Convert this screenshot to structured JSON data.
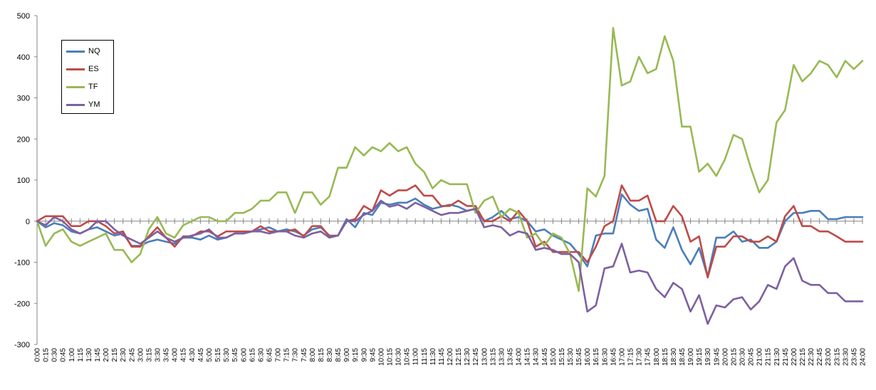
{
  "chart_data": {
    "type": "line",
    "title": "",
    "xlabel": "",
    "ylabel": "",
    "ylim": [
      -300,
      500
    ],
    "yticks": [
      -300,
      -200,
      -100,
      0,
      100,
      200,
      300,
      400,
      500
    ],
    "grid": false,
    "legend_position": "top-left",
    "x": [
      "0:00",
      "0:15",
      "0:30",
      "0:45",
      "1:00",
      "1:15",
      "1:30",
      "1:45",
      "2:00",
      "2:15",
      "2:30",
      "2:45",
      "3:00",
      "3:15",
      "3:30",
      "3:45",
      "4:00",
      "4:15",
      "4:30",
      "4:45",
      "5:00",
      "5:15",
      "5:30",
      "5:45",
      "6:00",
      "6:15",
      "6:30",
      "6:45",
      "7:00",
      "7:15",
      "7:30",
      "7:45",
      "8:00",
      "8:15",
      "8:30",
      "8:45",
      "9:00",
      "9:15",
      "9:30",
      "9:45",
      "10:00",
      "10:15",
      "10:30",
      "10:45",
      "11:00",
      "11:15",
      "11:30",
      "11:45",
      "12:00",
      "12:15",
      "12:30",
      "12:45",
      "13:00",
      "13:15",
      "13:30",
      "13:45",
      "14:00",
      "14:15",
      "14:30",
      "14:45",
      "15:00",
      "15:15",
      "15:30",
      "15:45",
      "16:00",
      "16:15",
      "16:30",
      "16:45",
      "17:00",
      "17:15",
      "17:30",
      "17:45",
      "18:00",
      "18:15",
      "18:30",
      "18:45",
      "19:00",
      "19:15",
      "19:30",
      "19:45",
      "20:00",
      "20:15",
      "20:30",
      "20:45",
      "21:00",
      "21:15",
      "21:30",
      "21:45",
      "22:00",
      "22:15",
      "22:30",
      "22:45",
      "23:00",
      "23:15",
      "23:30",
      "23:45",
      "24:00"
    ],
    "series": [
      {
        "name": "NQ",
        "color": "#4A7EBB",
        "values": [
          0,
          -15,
          -5,
          -10,
          -25,
          -30,
          -20,
          -15,
          -25,
          -35,
          -30,
          -60,
          -60,
          -50,
          -45,
          -50,
          -55,
          -40,
          -40,
          -45,
          -35,
          -45,
          -40,
          -30,
          -30,
          -25,
          -20,
          -15,
          -25,
          -20,
          -25,
          -35,
          -20,
          -15,
          -35,
          -35,
          5,
          -15,
          20,
          15,
          45,
          40,
          45,
          45,
          55,
          40,
          30,
          35,
          40,
          35,
          25,
          30,
          0,
          10,
          25,
          5,
          10,
          0,
          -25,
          -20,
          -35,
          -45,
          -55,
          -80,
          -110,
          -35,
          -30,
          -30,
          65,
          40,
          25,
          30,
          -45,
          -65,
          -15,
          -70,
          -105,
          -65,
          -135,
          -40,
          -40,
          -25,
          -50,
          -45,
          -65,
          -65,
          -50,
          0,
          20,
          20,
          25,
          25,
          5,
          5,
          10,
          10,
          10
        ]
      },
      {
        "name": "ES",
        "color": "#BE4B48",
        "values": [
          0,
          12,
          12,
          12,
          -12,
          -12,
          0,
          0,
          -12,
          -30,
          -25,
          -62,
          -62,
          -37,
          -15,
          -40,
          -62,
          -37,
          -37,
          -25,
          -25,
          -37,
          -25,
          -25,
          -25,
          -25,
          -12,
          -25,
          -25,
          -25,
          -20,
          -37,
          -12,
          -12,
          -37,
          -35,
          0,
          5,
          37,
          25,
          75,
          62,
          75,
          75,
          87,
          62,
          62,
          37,
          37,
          50,
          37,
          37,
          0,
          0,
          12,
          0,
          25,
          0,
          -62,
          -50,
          -75,
          -75,
          -75,
          -75,
          -100,
          -62,
          -12,
          0,
          87,
          50,
          50,
          62,
          0,
          0,
          37,
          12,
          -50,
          -37,
          -137,
          -62,
          -62,
          -37,
          -37,
          -50,
          -50,
          -37,
          -50,
          12,
          37,
          -12,
          -12,
          -25,
          -25,
          -37,
          -50,
          -50,
          -50
        ]
      },
      {
        "name": "TF",
        "color": "#98B954",
        "values": [
          0,
          -60,
          -30,
          -20,
          -50,
          -60,
          -50,
          -40,
          -30,
          -70,
          -70,
          -100,
          -80,
          -20,
          10,
          -30,
          -40,
          -10,
          0,
          10,
          10,
          0,
          0,
          20,
          20,
          30,
          50,
          50,
          70,
          70,
          20,
          70,
          70,
          40,
          60,
          130,
          130,
          180,
          160,
          180,
          170,
          190,
          170,
          180,
          140,
          120,
          80,
          100,
          90,
          90,
          90,
          20,
          50,
          60,
          10,
          30,
          20,
          -40,
          -30,
          -60,
          -30,
          -40,
          -80,
          -170,
          80,
          60,
          110,
          470,
          330,
          340,
          400,
          360,
          370,
          450,
          390,
          230,
          230,
          120,
          140,
          110,
          150,
          210,
          200,
          130,
          70,
          100,
          240,
          270,
          380,
          340,
          360,
          390,
          380,
          350,
          390,
          370,
          390
        ]
      },
      {
        "name": "YM",
        "color": "#7D60A0",
        "values": [
          0,
          -10,
          10,
          0,
          -20,
          -30,
          -20,
          0,
          0,
          -20,
          -35,
          -45,
          -55,
          -40,
          -25,
          -40,
          -50,
          -40,
          -35,
          -30,
          -20,
          -40,
          -40,
          -30,
          -30,
          -25,
          -25,
          -30,
          -25,
          -25,
          -35,
          -40,
          -30,
          -25,
          -40,
          -35,
          0,
          0,
          15,
          25,
          50,
          35,
          40,
          30,
          45,
          35,
          25,
          15,
          20,
          20,
          25,
          30,
          -15,
          -10,
          -15,
          -35,
          -25,
          -30,
          -70,
          -65,
          -70,
          -80,
          -80,
          -100,
          -220,
          -205,
          -115,
          -110,
          -55,
          -125,
          -120,
          -125,
          -165,
          -185,
          -150,
          -165,
          -220,
          -180,
          -250,
          -205,
          -210,
          -190,
          -185,
          -215,
          -195,
          -155,
          -165,
          -110,
          -90,
          -145,
          -155,
          -155,
          -175,
          -175,
          -195,
          -195,
          -195
        ]
      }
    ]
  }
}
